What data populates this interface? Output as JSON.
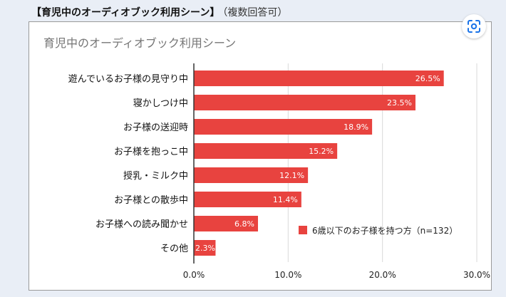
{
  "page": {
    "heading_main": "【育児中のオーディオブック利用シーン】",
    "heading_sub": "（複数回答可）"
  },
  "icons": {
    "lens": "google-lens-icon"
  },
  "colors": {
    "bar": "#e8433f",
    "grid": "#d9d9d9",
    "axis": "#333333",
    "title": "#757575"
  },
  "chart_data": {
    "type": "bar",
    "orientation": "horizontal",
    "title": "育児中のオーディオブック利用シーン",
    "categories": [
      "遊んでいるお子様の見守り中",
      "寝かしつけ中",
      "お子様の送迎時",
      "お子様を抱っこ中",
      "授乳・ミルク中",
      "お子様との散歩中",
      "お子様への読み聞かせ",
      "その他"
    ],
    "series": [
      {
        "name": "6歳以下のお子様を持つ方（n=132）",
        "values": [
          26.5,
          23.5,
          18.9,
          15.2,
          12.1,
          11.4,
          6.8,
          2.3
        ]
      }
    ],
    "value_labels": [
      "26.5%",
      "23.5%",
      "18.9%",
      "15.2%",
      "12.1%",
      "11.4%",
      "6.8%",
      "2.3%"
    ],
    "xlim": [
      0,
      30
    ],
    "xticks": [
      0,
      10,
      20,
      30
    ],
    "xtick_labels": [
      "0.0%",
      "10.0%",
      "20.0%",
      "30.0%"
    ],
    "grid": true,
    "legend_position": "bottom-right",
    "xlabel": "",
    "ylabel": ""
  }
}
